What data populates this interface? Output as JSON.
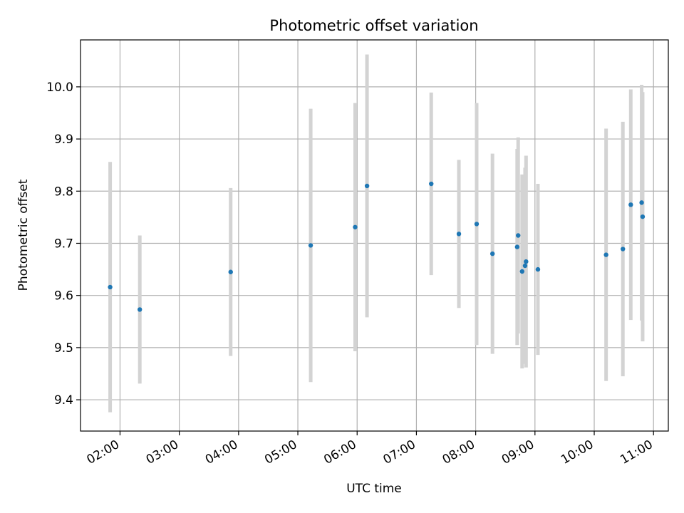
{
  "chart_data": {
    "type": "scatter",
    "title": "Photometric offset variation",
    "xlabel": "UTC time",
    "ylabel": "Photometric offset",
    "x_ticks": [
      "02:00",
      "03:00",
      "04:00",
      "05:00",
      "06:00",
      "07:00",
      "08:00",
      "09:00",
      "10:00",
      "11:00"
    ],
    "y_ticks": [
      "9.4",
      "9.5",
      "9.6",
      "9.7",
      "9.8",
      "9.9",
      "10.0"
    ],
    "xlim": [
      "01:20",
      "11:15"
    ],
    "ylim": [
      9.34,
      10.09
    ],
    "grid": true,
    "colors": {
      "points": "#1f77b4",
      "errorbars": "#d3d3d3",
      "grid": "#b0b0b0"
    },
    "points": [
      {
        "x": "01:50",
        "y": 9.616,
        "err": 0.24
      },
      {
        "x": "02:20",
        "y": 9.573,
        "err": 0.142
      },
      {
        "x": "03:52",
        "y": 9.645,
        "err": 0.161
      },
      {
        "x": "05:13",
        "y": 9.696,
        "err": 0.262
      },
      {
        "x": "05:58",
        "y": 9.731,
        "err": 0.238
      },
      {
        "x": "06:10",
        "y": 9.81,
        "err": 0.252
      },
      {
        "x": "07:15",
        "y": 9.814,
        "err": 0.175
      },
      {
        "x": "07:43",
        "y": 9.718,
        "err": 0.142
      },
      {
        "x": "08:01",
        "y": 9.737,
        "err": 0.232
      },
      {
        "x": "08:17",
        "y": 9.68,
        "err": 0.192
      },
      {
        "x": "08:42",
        "y": 9.693,
        "err": 0.188
      },
      {
        "x": "08:43",
        "y": 9.715,
        "err": 0.188
      },
      {
        "x": "08:47",
        "y": 9.646,
        "err": 0.186
      },
      {
        "x": "08:50",
        "y": 9.657,
        "err": 0.188
      },
      {
        "x": "08:51",
        "y": 9.665,
        "err": 0.203
      },
      {
        "x": "09:03",
        "y": 9.65,
        "err": 0.164
      },
      {
        "x": "10:12",
        "y": 9.678,
        "err": 0.242
      },
      {
        "x": "10:29",
        "y": 9.689,
        "err": 0.244
      },
      {
        "x": "10:37",
        "y": 9.774,
        "err": 0.221
      },
      {
        "x": "10:48",
        "y": 9.778,
        "err": 0.226
      },
      {
        "x": "10:49",
        "y": 9.751,
        "err": 0.239
      }
    ]
  }
}
